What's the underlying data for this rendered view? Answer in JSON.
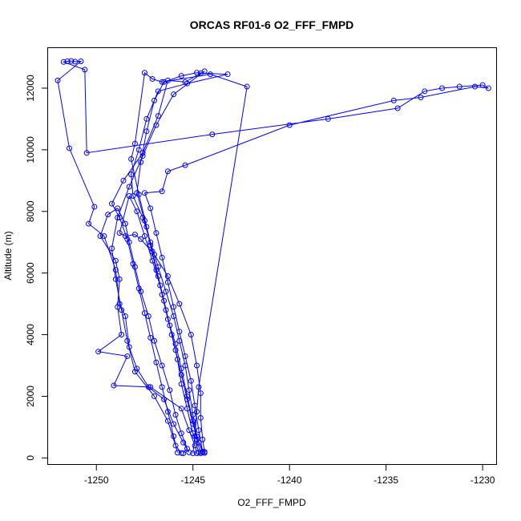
{
  "chart_data": {
    "type": "scatter",
    "title": "ORCAS RF01-6 O2_FFF_FMPD",
    "xlabel": "O2_FFF_FMPD",
    "ylabel": "Altitude (m)",
    "xlim": [
      -1252.5,
      -1229.3
    ],
    "ylim": [
      -200,
      13300
    ],
    "x_ticks": [
      -1250,
      -1245,
      -1240,
      -1235,
      -1230
    ],
    "y_ticks": [
      0,
      2000,
      4000,
      6000,
      8000,
      10000,
      12000
    ],
    "grid": false,
    "color": "#0000ff",
    "series": [
      {
        "values": [
          [
            -1245.5,
            150
          ],
          [
            -1245.3,
            300
          ],
          [
            -1245.6,
            800
          ],
          [
            -1245.9,
            1400
          ],
          [
            -1246.2,
            2200
          ],
          [
            -1246.6,
            3000
          ],
          [
            -1247.0,
            3800
          ],
          [
            -1247.3,
            4600
          ],
          [
            -1247.7,
            5400
          ],
          [
            -1248.0,
            6200
          ],
          [
            -1248.3,
            7000
          ],
          [
            -1248.5,
            7600
          ],
          [
            -1248.9,
            8100
          ],
          [
            -1249.4,
            7900
          ],
          [
            -1249.8,
            7200
          ],
          [
            -1249.0,
            6400
          ],
          [
            -1248.8,
            5800
          ],
          [
            -1248.9,
            4900
          ],
          [
            -1248.7,
            4000
          ],
          [
            -1249.9,
            3450
          ],
          [
            -1248.4,
            3300
          ],
          [
            -1249.1,
            2350
          ],
          [
            -1247.2,
            2300
          ],
          [
            -1245.6,
            1600
          ],
          [
            -1245.2,
            900
          ],
          [
            -1244.9,
            400
          ],
          [
            -1244.8,
            150
          ]
        ]
      },
      {
        "values": [
          [
            -1244.6,
            150
          ],
          [
            -1244.8,
            600
          ],
          [
            -1245.0,
            1200
          ],
          [
            -1245.3,
            2000
          ],
          [
            -1245.6,
            2900
          ],
          [
            -1245.9,
            3700
          ],
          [
            -1246.3,
            4500
          ],
          [
            -1246.6,
            5300
          ],
          [
            -1246.9,
            6100
          ],
          [
            -1247.2,
            6900
          ],
          [
            -1247.5,
            7700
          ],
          [
            -1247.9,
            8600
          ],
          [
            -1247.7,
            9600
          ],
          [
            -1247.4,
            10600
          ],
          [
            -1247.0,
            11600
          ],
          [
            -1246.5,
            12200
          ],
          [
            -1245.6,
            12400
          ],
          [
            -1244.8,
            12500
          ],
          [
            -1243.2,
            12450
          ],
          [
            -1245.3,
            12150
          ],
          [
            -1246.8,
            11900
          ],
          [
            -1247.4,
            11000
          ],
          [
            -1247.8,
            10000
          ],
          [
            -1248.2,
            9200
          ],
          [
            -1248.1,
            8500
          ],
          [
            -1247.6,
            7800
          ],
          [
            -1247.2,
            7000
          ],
          [
            -1246.8,
            6200
          ],
          [
            -1246.4,
            5400
          ],
          [
            -1246.0,
            4600
          ],
          [
            -1245.7,
            3800
          ],
          [
            -1245.4,
            3000
          ],
          [
            -1245.2,
            2200
          ],
          [
            -1245.0,
            1400
          ],
          [
            -1244.8,
            700
          ],
          [
            -1244.5,
            180
          ]
        ]
      },
      {
        "values": [
          [
            -1244.5,
            200
          ],
          [
            -1244.7,
            900
          ],
          [
            -1244.9,
            1700
          ],
          [
            -1245.1,
            2500
          ],
          [
            -1245.4,
            3300
          ],
          [
            -1245.7,
            4100
          ],
          [
            -1246.0,
            4900
          ],
          [
            -1246.3,
            5700
          ],
          [
            -1246.6,
            6500
          ],
          [
            -1246.9,
            7300
          ],
          [
            -1247.2,
            8100
          ],
          [
            -1247.5,
            8600
          ],
          [
            -1246.6,
            8650
          ],
          [
            -1246.3,
            9300
          ],
          [
            -1245.4,
            9500
          ],
          [
            -1240.0,
            10800
          ],
          [
            -1234.6,
            11600
          ],
          [
            -1233.2,
            11700
          ],
          [
            -1230.4,
            12050
          ],
          [
            -1229.7,
            12000
          ],
          [
            -1230.0,
            12100
          ],
          [
            -1231.2,
            12050
          ],
          [
            -1232.1,
            12000
          ],
          [
            -1233.0,
            11900
          ],
          [
            -1234.4,
            11350
          ],
          [
            -1238.0,
            11000
          ],
          [
            -1244.0,
            10500
          ],
          [
            -1250.5,
            9900
          ],
          [
            -1250.6,
            12600
          ],
          [
            -1251.7,
            12850
          ],
          [
            -1251.5,
            12870
          ],
          [
            -1251.3,
            12880
          ],
          [
            -1251.1,
            12860
          ],
          [
            -1250.8,
            12870
          ],
          [
            -1252.0,
            12250
          ],
          [
            -1251.4,
            10050
          ],
          [
            -1250.1,
            8150
          ],
          [
            -1250.4,
            7600
          ],
          [
            -1249.6,
            7200
          ],
          [
            -1249.0,
            6100
          ],
          [
            -1248.8,
            5000
          ],
          [
            -1248.5,
            4600
          ],
          [
            -1248.3,
            3600
          ],
          [
            -1247.9,
            2900
          ],
          [
            -1247.3,
            2300
          ],
          [
            -1246.5,
            1900
          ],
          [
            -1246.0,
            1100
          ],
          [
            -1245.5,
            500
          ],
          [
            -1245.2,
            180
          ]
        ]
      },
      {
        "values": [
          [
            -1244.4,
            160
          ],
          [
            -1244.7,
            500
          ],
          [
            -1245.0,
            1100
          ],
          [
            -1245.3,
            1900
          ],
          [
            -1245.6,
            2700
          ],
          [
            -1245.9,
            3500
          ],
          [
            -1246.2,
            4300
          ],
          [
            -1246.5,
            5100
          ],
          [
            -1246.8,
            5900
          ],
          [
            -1247.1,
            6700
          ],
          [
            -1247.4,
            7500
          ],
          [
            -1247.8,
            8550
          ],
          [
            -1248.2,
            9700
          ],
          [
            -1248.0,
            10200
          ],
          [
            -1247.5,
            12500
          ],
          [
            -1247.1,
            12300
          ],
          [
            -1246.6,
            12200
          ],
          [
            -1244.1,
            12450
          ],
          [
            -1242.2,
            12050
          ],
          [
            -1244.7,
            2300
          ],
          [
            -1244.8,
            1500
          ],
          [
            -1244.9,
            700
          ],
          [
            -1245.0,
            150
          ]
        ]
      },
      {
        "values": [
          [
            -1244.7,
            180
          ],
          [
            -1245.0,
            800
          ],
          [
            -1245.3,
            1600
          ],
          [
            -1245.6,
            2400
          ],
          [
            -1245.8,
            3200
          ],
          [
            -1246.1,
            4000
          ],
          [
            -1246.4,
            4800
          ],
          [
            -1246.7,
            5600
          ],
          [
            -1247.1,
            6400
          ],
          [
            -1247.5,
            7200
          ],
          [
            -1247.9,
            8000
          ],
          [
            -1248.3,
            8500
          ],
          [
            -1248.8,
            7300
          ],
          [
            -1248.5,
            7200
          ],
          [
            -1248.0,
            7250
          ],
          [
            -1247.7,
            7100
          ],
          [
            -1247.0,
            6600
          ],
          [
            -1246.3,
            5900
          ],
          [
            -1245.7,
            5000
          ],
          [
            -1245.1,
            4000
          ],
          [
            -1244.8,
            3000
          ],
          [
            -1244.6,
            2100
          ],
          [
            -1244.6,
            1300
          ],
          [
            -1244.5,
            600
          ],
          [
            -1244.4,
            200
          ]
        ]
      },
      {
        "values": [
          [
            -1245.8,
            170
          ],
          [
            -1246.0,
            700
          ],
          [
            -1246.3,
            1500
          ],
          [
            -1246.6,
            2300
          ],
          [
            -1246.9,
            3100
          ],
          [
            -1247.2,
            3900
          ],
          [
            -1247.5,
            4700
          ],
          [
            -1247.8,
            5500
          ],
          [
            -1248.1,
            6300
          ],
          [
            -1248.4,
            7100
          ],
          [
            -1248.8,
            7800
          ],
          [
            -1249.2,
            8250
          ],
          [
            -1248.6,
            9000
          ],
          [
            -1247.6,
            9900
          ],
          [
            -1246.8,
            11100
          ],
          [
            -1246.3,
            12250
          ],
          [
            -1245.4,
            12200
          ],
          [
            -1244.6,
            12480
          ],
          [
            -1244.4,
            12550
          ],
          [
            -1246.0,
            11800
          ],
          [
            -1246.9,
            10800
          ],
          [
            -1247.6,
            9800
          ],
          [
            -1248.3,
            8800
          ],
          [
            -1248.9,
            7800
          ],
          [
            -1249.2,
            6800
          ],
          [
            -1249.0,
            5800
          ],
          [
            -1248.7,
            4800
          ],
          [
            -1248.4,
            3800
          ],
          [
            -1248.0,
            2800
          ],
          [
            -1247.0,
            2000
          ],
          [
            -1246.3,
            1200
          ],
          [
            -1245.9,
            400
          ],
          [
            -1245.6,
            160
          ]
        ]
      }
    ]
  }
}
